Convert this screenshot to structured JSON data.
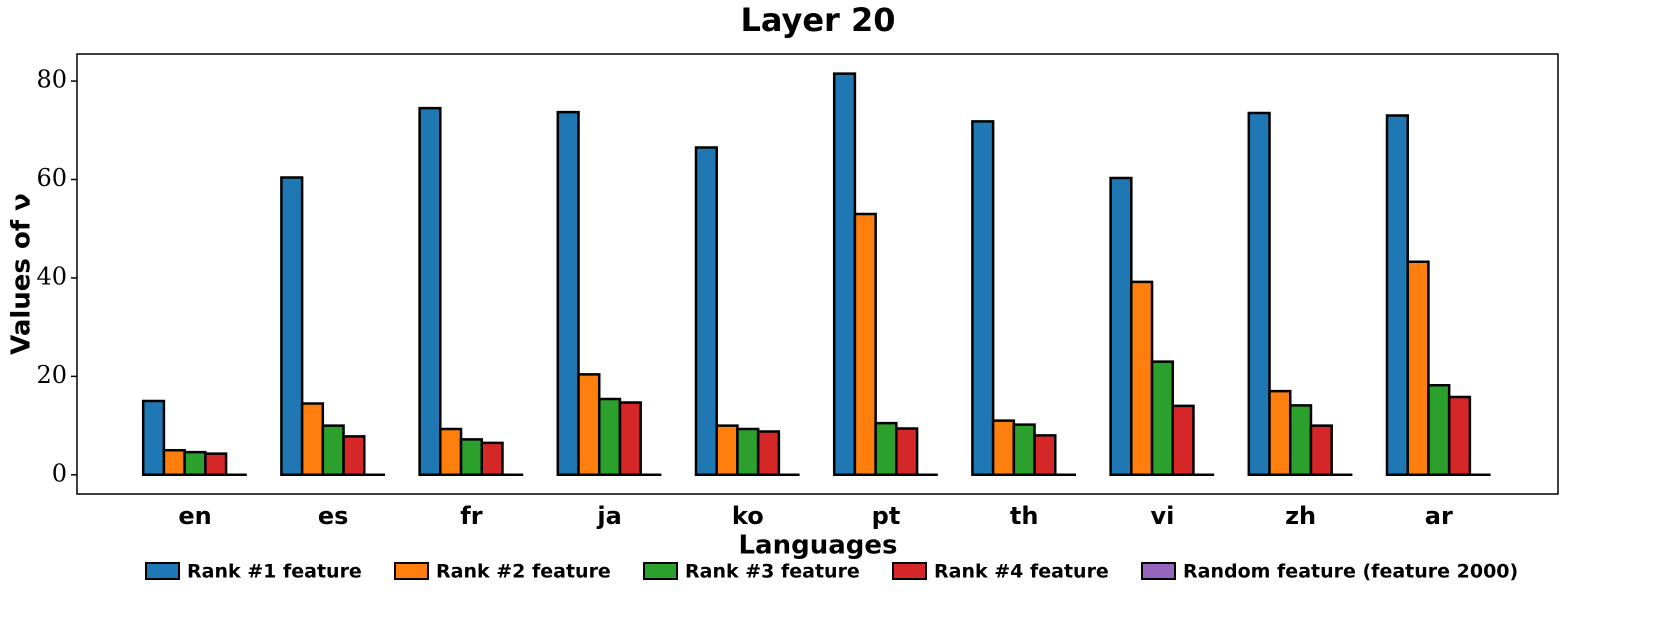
{
  "chart_data": {
    "type": "bar",
    "title": "Layer 20",
    "x_label": "Languages",
    "y_label": "Values of ν",
    "categories": [
      "en",
      "es",
      "fr",
      "ja",
      "ko",
      "pt",
      "th",
      "vi",
      "zh",
      "ar"
    ],
    "series": [
      {
        "name": "Rank #1 feature",
        "color": "#1f77b4",
        "values": [
          15,
          60.4,
          74.5,
          73.7,
          66.5,
          81.5,
          71.8,
          60.3,
          73.5,
          73
        ]
      },
      {
        "name": "Rank #2 feature",
        "color": "#ff7f0e",
        "values": [
          5,
          14.5,
          9.3,
          20.4,
          10,
          53,
          11,
          39.2,
          17,
          43.3
        ]
      },
      {
        "name": "Rank #3 feature",
        "color": "#2ca02c",
        "values": [
          4.6,
          10,
          7.2,
          15.4,
          9.3,
          10.5,
          10.2,
          23,
          14.1,
          18.2
        ]
      },
      {
        "name": "Rank #4 feature",
        "color": "#d62728",
        "values": [
          4.3,
          7.8,
          6.5,
          14.7,
          8.8,
          9.4,
          8,
          14,
          10,
          15.8
        ]
      },
      {
        "name": "Random feature (feature 2000)",
        "color": "#9467bd",
        "values": [
          0,
          0,
          0,
          0,
          0,
          0,
          0,
          0,
          0,
          0
        ]
      }
    ],
    "ylim": [
      -3.9,
      85.5
    ],
    "yticks": [
      0,
      20,
      40,
      60,
      80
    ],
    "grid": false,
    "legend": "bottom"
  }
}
